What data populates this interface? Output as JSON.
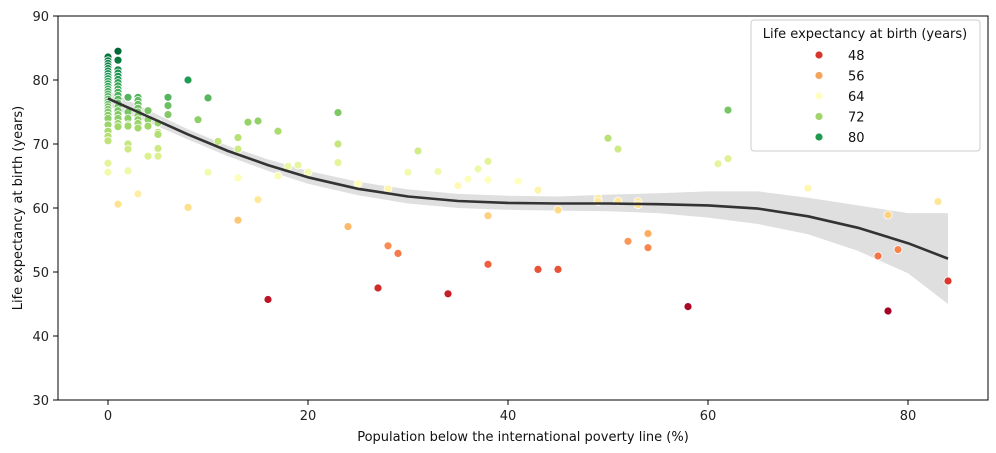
{
  "chart_data": {
    "type": "scatter",
    "xlabel": "Population below the international poverty line (%)",
    "ylabel": "Life expectancy at birth (years)",
    "xlim": [
      -5,
      88
    ],
    "ylim": [
      30,
      90
    ],
    "xticks": [
      0,
      20,
      40,
      60,
      80
    ],
    "yticks": [
      30,
      40,
      50,
      60,
      70,
      80,
      90
    ],
    "grid": false,
    "legend": {
      "title": "Life expectancy at birth (years)",
      "position": "top-right",
      "entries": [
        {
          "label": "48",
          "color": "#d7362a"
        },
        {
          "label": "56",
          "color": "#f4a55c"
        },
        {
          "label": "64",
          "color": "#fefec0"
        },
        {
          "label": "72",
          "color": "#a3d46a"
        },
        {
          "label": "80",
          "color": "#1f9a4e"
        }
      ]
    },
    "colormap": {
      "name": "RdYlGn",
      "vmin": 44,
      "vmax": 84.5
    },
    "points": [
      [
        0,
        83.6
      ],
      [
        0,
        83.0
      ],
      [
        0,
        82.6
      ],
      [
        0,
        82.2
      ],
      [
        0,
        81.8
      ],
      [
        0,
        81.4
      ],
      [
        0,
        81.0
      ],
      [
        0,
        80.6
      ],
      [
        0,
        80.2
      ],
      [
        0,
        79.8
      ],
      [
        0,
        79.4
      ],
      [
        0,
        79.0
      ],
      [
        0,
        78.6
      ],
      [
        0,
        78.2
      ],
      [
        0,
        77.8
      ],
      [
        0,
        77.4
      ],
      [
        0,
        77.0
      ],
      [
        0,
        76.6
      ],
      [
        0,
        76.2
      ],
      [
        0,
        75.8
      ],
      [
        0,
        75.4
      ],
      [
        0,
        75.0
      ],
      [
        0,
        74.5
      ],
      [
        0,
        74.0
      ],
      [
        0,
        73.0
      ],
      [
        0,
        72.0
      ],
      [
        0,
        71.2
      ],
      [
        0,
        70.5
      ],
      [
        0,
        67.0
      ],
      [
        0,
        65.6
      ],
      [
        1,
        84.5
      ],
      [
        1,
        83.1
      ],
      [
        1,
        81.6
      ],
      [
        1,
        81.1
      ],
      [
        1,
        80.6
      ],
      [
        1,
        80.1
      ],
      [
        1,
        79.6
      ],
      [
        1,
        79.1
      ],
      [
        1,
        78.6
      ],
      [
        1,
        78.1
      ],
      [
        1,
        77.6
      ],
      [
        1,
        77.0
      ],
      [
        1,
        76.4
      ],
      [
        1,
        75.8
      ],
      [
        1,
        75.2
      ],
      [
        1,
        74.6
      ],
      [
        1,
        74.0
      ],
      [
        1,
        73.2
      ],
      [
        1,
        72.7
      ],
      [
        1,
        60.6
      ],
      [
        2,
        77.3
      ],
      [
        2,
        75.0
      ],
      [
        2,
        74.0
      ],
      [
        2,
        73.0
      ],
      [
        2,
        72.8
      ],
      [
        2,
        70.0
      ],
      [
        2,
        69.2
      ],
      [
        2,
        65.8
      ],
      [
        3,
        77.3
      ],
      [
        3,
        76.8
      ],
      [
        3,
        76.2
      ],
      [
        3,
        75.6
      ],
      [
        3,
        75.0
      ],
      [
        3,
        74.4
      ],
      [
        3,
        73.8
      ],
      [
        3,
        73.2
      ],
      [
        3,
        72.5
      ],
      [
        3,
        62.2
      ],
      [
        4,
        75.2
      ],
      [
        4,
        73.8
      ],
      [
        4,
        72.8
      ],
      [
        4,
        68.1
      ],
      [
        5,
        73.3
      ],
      [
        5,
        71.8
      ],
      [
        5,
        71.5
      ],
      [
        5,
        69.3
      ],
      [
        5,
        68.1
      ],
      [
        6,
        77.3
      ],
      [
        6,
        76.0
      ],
      [
        6,
        74.6
      ],
      [
        8,
        80.0
      ],
      [
        8,
        60.1
      ],
      [
        9,
        73.8
      ],
      [
        10,
        77.2
      ],
      [
        10,
        65.6
      ],
      [
        11,
        70.4
      ],
      [
        13,
        71.0
      ],
      [
        13,
        69.2
      ],
      [
        13,
        64.7
      ],
      [
        13,
        58.1
      ],
      [
        14,
        73.4
      ],
      [
        15,
        73.6
      ],
      [
        15,
        61.3
      ],
      [
        16,
        45.7
      ],
      [
        17,
        72.0
      ],
      [
        17,
        65.0
      ],
      [
        18,
        66.5
      ],
      [
        19,
        66.7
      ],
      [
        20,
        65.6
      ],
      [
        23,
        74.9
      ],
      [
        23,
        70.0
      ],
      [
        23,
        67.1
      ],
      [
        24,
        57.1
      ],
      [
        25,
        63.8
      ],
      [
        27,
        47.5
      ],
      [
        28,
        63.0
      ],
      [
        28,
        54.1
      ],
      [
        29,
        52.9
      ],
      [
        30,
        65.6
      ],
      [
        31,
        68.9
      ],
      [
        33,
        65.7
      ],
      [
        34,
        46.6
      ],
      [
        35,
        63.5
      ],
      [
        36,
        64.5
      ],
      [
        37,
        66.1
      ],
      [
        38,
        67.3
      ],
      [
        38,
        64.4
      ],
      [
        38,
        58.8
      ],
      [
        38,
        51.2
      ],
      [
        41,
        64.2
      ],
      [
        43,
        62.8
      ],
      [
        43,
        50.4
      ],
      [
        45,
        59.7
      ],
      [
        45,
        50.4
      ],
      [
        49,
        61.5
      ],
      [
        49,
        61.0
      ],
      [
        50,
        70.9
      ],
      [
        51,
        69.2
      ],
      [
        51,
        61.1
      ],
      [
        52,
        54.8
      ],
      [
        53,
        61.0
      ],
      [
        53,
        60.5
      ],
      [
        54,
        56.0
      ],
      [
        54,
        53.8
      ],
      [
        58,
        44.6
      ],
      [
        61,
        66.9
      ],
      [
        62,
        75.3
      ],
      [
        62,
        67.7
      ],
      [
        70,
        63.1
      ],
      [
        77,
        52.5
      ],
      [
        78,
        58.9
      ],
      [
        78,
        43.9
      ],
      [
        79,
        53.5
      ],
      [
        83,
        61.0
      ],
      [
        84,
        48.6
      ]
    ],
    "trend_line": {
      "x": [
        0,
        4,
        8,
        12,
        16,
        20,
        25,
        30,
        35,
        40,
        45,
        50,
        55,
        60,
        65,
        70,
        75,
        80,
        84
      ],
      "y": [
        77.1,
        74.3,
        71.5,
        68.9,
        66.7,
        64.8,
        63.0,
        61.8,
        61.1,
        60.8,
        60.7,
        60.7,
        60.6,
        60.4,
        59.9,
        58.7,
        56.9,
        54.5,
        52.1
      ]
    },
    "confidence_band": {
      "x": [
        0,
        4,
        8,
        12,
        16,
        20,
        25,
        30,
        35,
        40,
        45,
        50,
        55,
        60,
        65,
        70,
        75,
        80,
        84
      ],
      "lower": [
        75.9,
        73.4,
        70.7,
        68.1,
        65.8,
        63.8,
        62.0,
        60.7,
        60.0,
        59.7,
        59.6,
        59.5,
        59.2,
        58.5,
        57.5,
        55.9,
        53.3,
        49.8,
        45.0
      ],
      "upper": [
        78.3,
        75.3,
        72.3,
        69.7,
        67.6,
        65.8,
        64.1,
        62.9,
        62.2,
        61.9,
        61.8,
        62.1,
        62.3,
        62.6,
        62.6,
        61.6,
        60.4,
        59.2,
        59.2
      ]
    }
  }
}
